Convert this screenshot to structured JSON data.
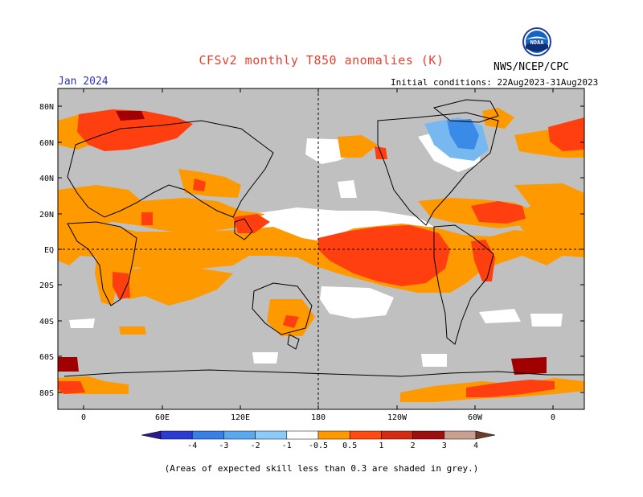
{
  "header": {
    "title": "CFSv2 monthly T850 anomalies (K)",
    "agency": "NWS/NCEP/CPC",
    "month": "Jan 2024",
    "initial_conditions": "Initial conditions: 22Aug2023-31Aug2023",
    "logo_text": "NOAA"
  },
  "map": {
    "lat_labels": [
      "80N",
      "60N",
      "40N",
      "20N",
      "EQ",
      "20S",
      "40S",
      "60S",
      "80S"
    ],
    "lon_labels": [
      "0",
      "60E",
      "120E",
      "180",
      "120W",
      "60W",
      "0"
    ],
    "colors": {
      "grey": "#c0c0c0",
      "neutral": "#ffffff",
      "pos_05_1": "#ff9900",
      "pos_1_2": "#ff3f0f",
      "pos_2_3": "#dd2a10",
      "pos_3_4": "#a00000",
      "neg_05_1": "#78b8f0",
      "neg_1_2": "#3a8ae8"
    }
  },
  "colorbar": {
    "tick_labels": [
      "-4",
      "-3",
      "-2",
      "-1",
      "-0.5",
      "0.5",
      "1",
      "2",
      "3",
      "4"
    ],
    "colors": [
      "#2c1a8c",
      "#2c3cd0",
      "#3a7ee8",
      "#5aa8f0",
      "#8ccaf8",
      "#ffffff",
      "#ff9900",
      "#ff4a10",
      "#d42c12",
      "#9c1010",
      "#c8a090",
      "#6e3c2c"
    ]
  },
  "footnote": "(Areas of expected skill less than 0.3 are shaded in grey.)"
}
